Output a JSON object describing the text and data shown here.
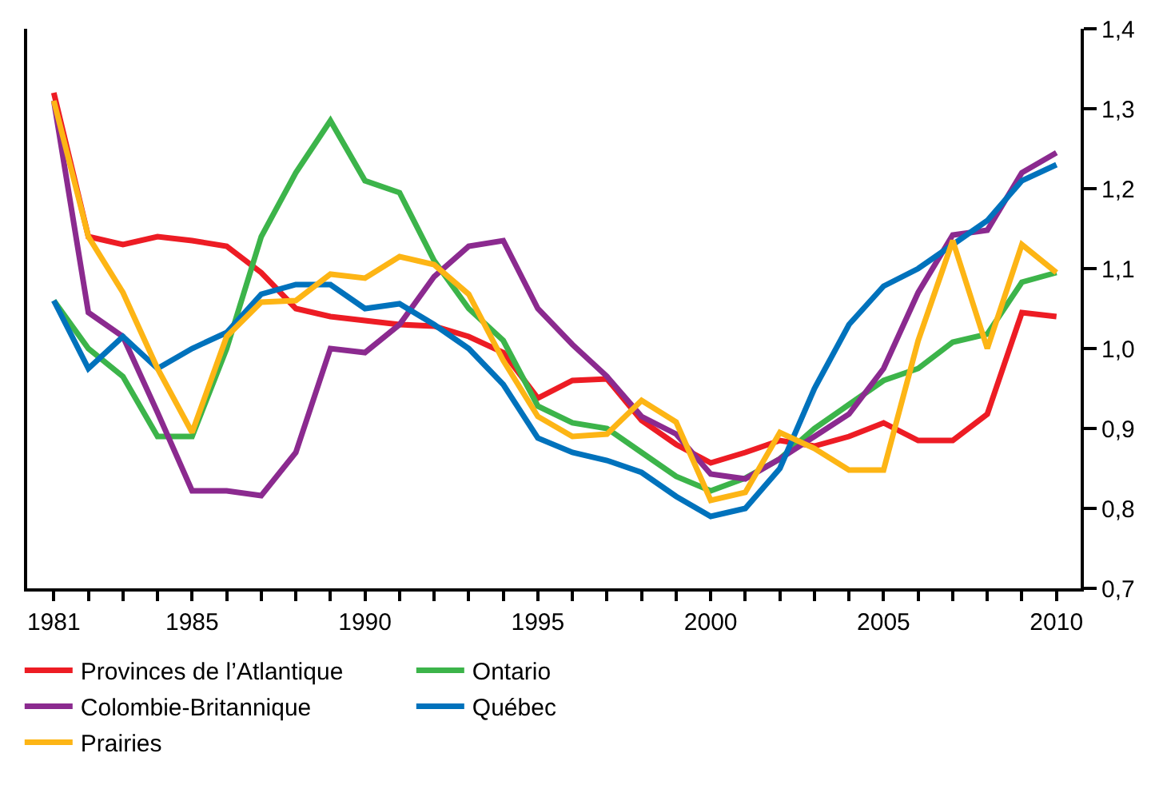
{
  "chart_data": {
    "type": "line",
    "x": [
      1981,
      1982,
      1983,
      1984,
      1985,
      1986,
      1987,
      1988,
      1989,
      1990,
      1991,
      1992,
      1993,
      1994,
      1995,
      1996,
      1997,
      1998,
      1999,
      2000,
      2001,
      2002,
      2003,
      2004,
      2005,
      2006,
      2007,
      2008,
      2009,
      2010
    ],
    "series": [
      {
        "name": "Provinces de l’Atlantique",
        "color": "#ed1c24",
        "values": [
          1.32,
          1.14,
          1.13,
          1.14,
          1.135,
          1.128,
          1.095,
          1.05,
          1.04,
          1.035,
          1.03,
          1.028,
          1.015,
          0.995,
          0.938,
          0.96,
          0.962,
          0.91,
          0.88,
          0.857,
          0.87,
          0.885,
          0.878,
          0.89,
          0.907,
          0.885,
          0.885,
          0.918,
          1.045,
          1.04
        ]
      },
      {
        "name": "Ontario",
        "color": "#3cb44a",
        "values": [
          1.06,
          1.0,
          0.965,
          0.89,
          0.89,
          1.0,
          1.14,
          1.22,
          1.285,
          1.21,
          1.195,
          1.11,
          1.05,
          1.01,
          0.928,
          0.907,
          0.9,
          0.87,
          0.84,
          0.822,
          0.838,
          0.862,
          0.9,
          0.93,
          0.96,
          0.975,
          1.008,
          1.018,
          1.083,
          1.095
        ]
      },
      {
        "name": "Colombie-Britannique",
        "color": "#8b2a8f",
        "values": [
          1.31,
          1.045,
          1.015,
          0.92,
          0.822,
          0.822,
          0.816,
          0.87,
          1.0,
          0.995,
          1.03,
          1.09,
          1.128,
          1.135,
          1.05,
          1.005,
          0.965,
          0.915,
          0.893,
          0.843,
          0.837,
          0.862,
          0.89,
          0.918,
          0.975,
          1.07,
          1.142,
          1.148,
          1.22,
          1.245
        ]
      },
      {
        "name": "Québec",
        "color": "#0072bc",
        "values": [
          1.06,
          0.975,
          1.015,
          0.975,
          1.0,
          1.02,
          1.068,
          1.08,
          1.08,
          1.05,
          1.056,
          1.03,
          1.0,
          0.955,
          0.888,
          0.87,
          0.86,
          0.845,
          0.815,
          0.79,
          0.8,
          0.85,
          0.95,
          1.03,
          1.078,
          1.1,
          1.13,
          1.16,
          1.21,
          1.23
        ]
      },
      {
        "name": "Prairies",
        "color": "#fdb515",
        "values": [
          1.31,
          1.14,
          1.07,
          0.975,
          0.895,
          1.015,
          1.058,
          1.06,
          1.093,
          1.088,
          1.115,
          1.105,
          1.068,
          0.985,
          0.915,
          0.89,
          0.893,
          0.935,
          0.908,
          0.81,
          0.82,
          0.895,
          0.875,
          0.848,
          0.848,
          1.01,
          1.135,
          1.0,
          1.13,
          1.095
        ]
      }
    ],
    "xlim": [
      1980.23,
      2010.7
    ],
    "xticks": [
      1981,
      {
        "value": 1982,
        "label": null
      },
      {
        "value": 1983,
        "label": null
      },
      {
        "value": 1984,
        "label": null
      },
      1985,
      {
        "value": 1986,
        "label": null
      },
      {
        "value": 1987,
        "label": null
      },
      {
        "value": 1988,
        "label": null
      },
      {
        "value": 1989,
        "label": null
      },
      1990,
      {
        "value": 1991,
        "label": null
      },
      {
        "value": 1992,
        "label": null
      },
      {
        "value": 1993,
        "label": null
      },
      {
        "value": 1994,
        "label": null
      },
      1995,
      {
        "value": 1996,
        "label": null
      },
      {
        "value": 1997,
        "label": null
      },
      {
        "value": 1998,
        "label": null
      },
      {
        "value": 1999,
        "label": null
      },
      2000,
      {
        "value": 2001,
        "label": null
      },
      {
        "value": 2002,
        "label": null
      },
      {
        "value": 2003,
        "label": null
      },
      {
        "value": 2004,
        "label": null
      },
      2005,
      {
        "value": 2006,
        "label": null
      },
      {
        "value": 2007,
        "label": null
      },
      {
        "value": 2008,
        "label": null
      },
      {
        "value": 2009,
        "label": null
      },
      2010
    ],
    "ylim": [
      0.7,
      1.4
    ],
    "yticks": [
      {
        "value": 0.7,
        "label": "0,7"
      },
      {
        "value": 0.8,
        "label": "0,8"
      },
      {
        "value": 0.9,
        "label": "0,9"
      },
      {
        "value": 1.0,
        "label": "1,0"
      },
      {
        "value": 1.1,
        "label": "1,1"
      },
      {
        "value": 1.2,
        "label": "1,2"
      },
      {
        "value": 1.3,
        "label": "1,3"
      },
      {
        "value": 1.4,
        "label": "1,4"
      }
    ],
    "legend": "bottom",
    "marker": "none",
    "line_style": "solid"
  }
}
